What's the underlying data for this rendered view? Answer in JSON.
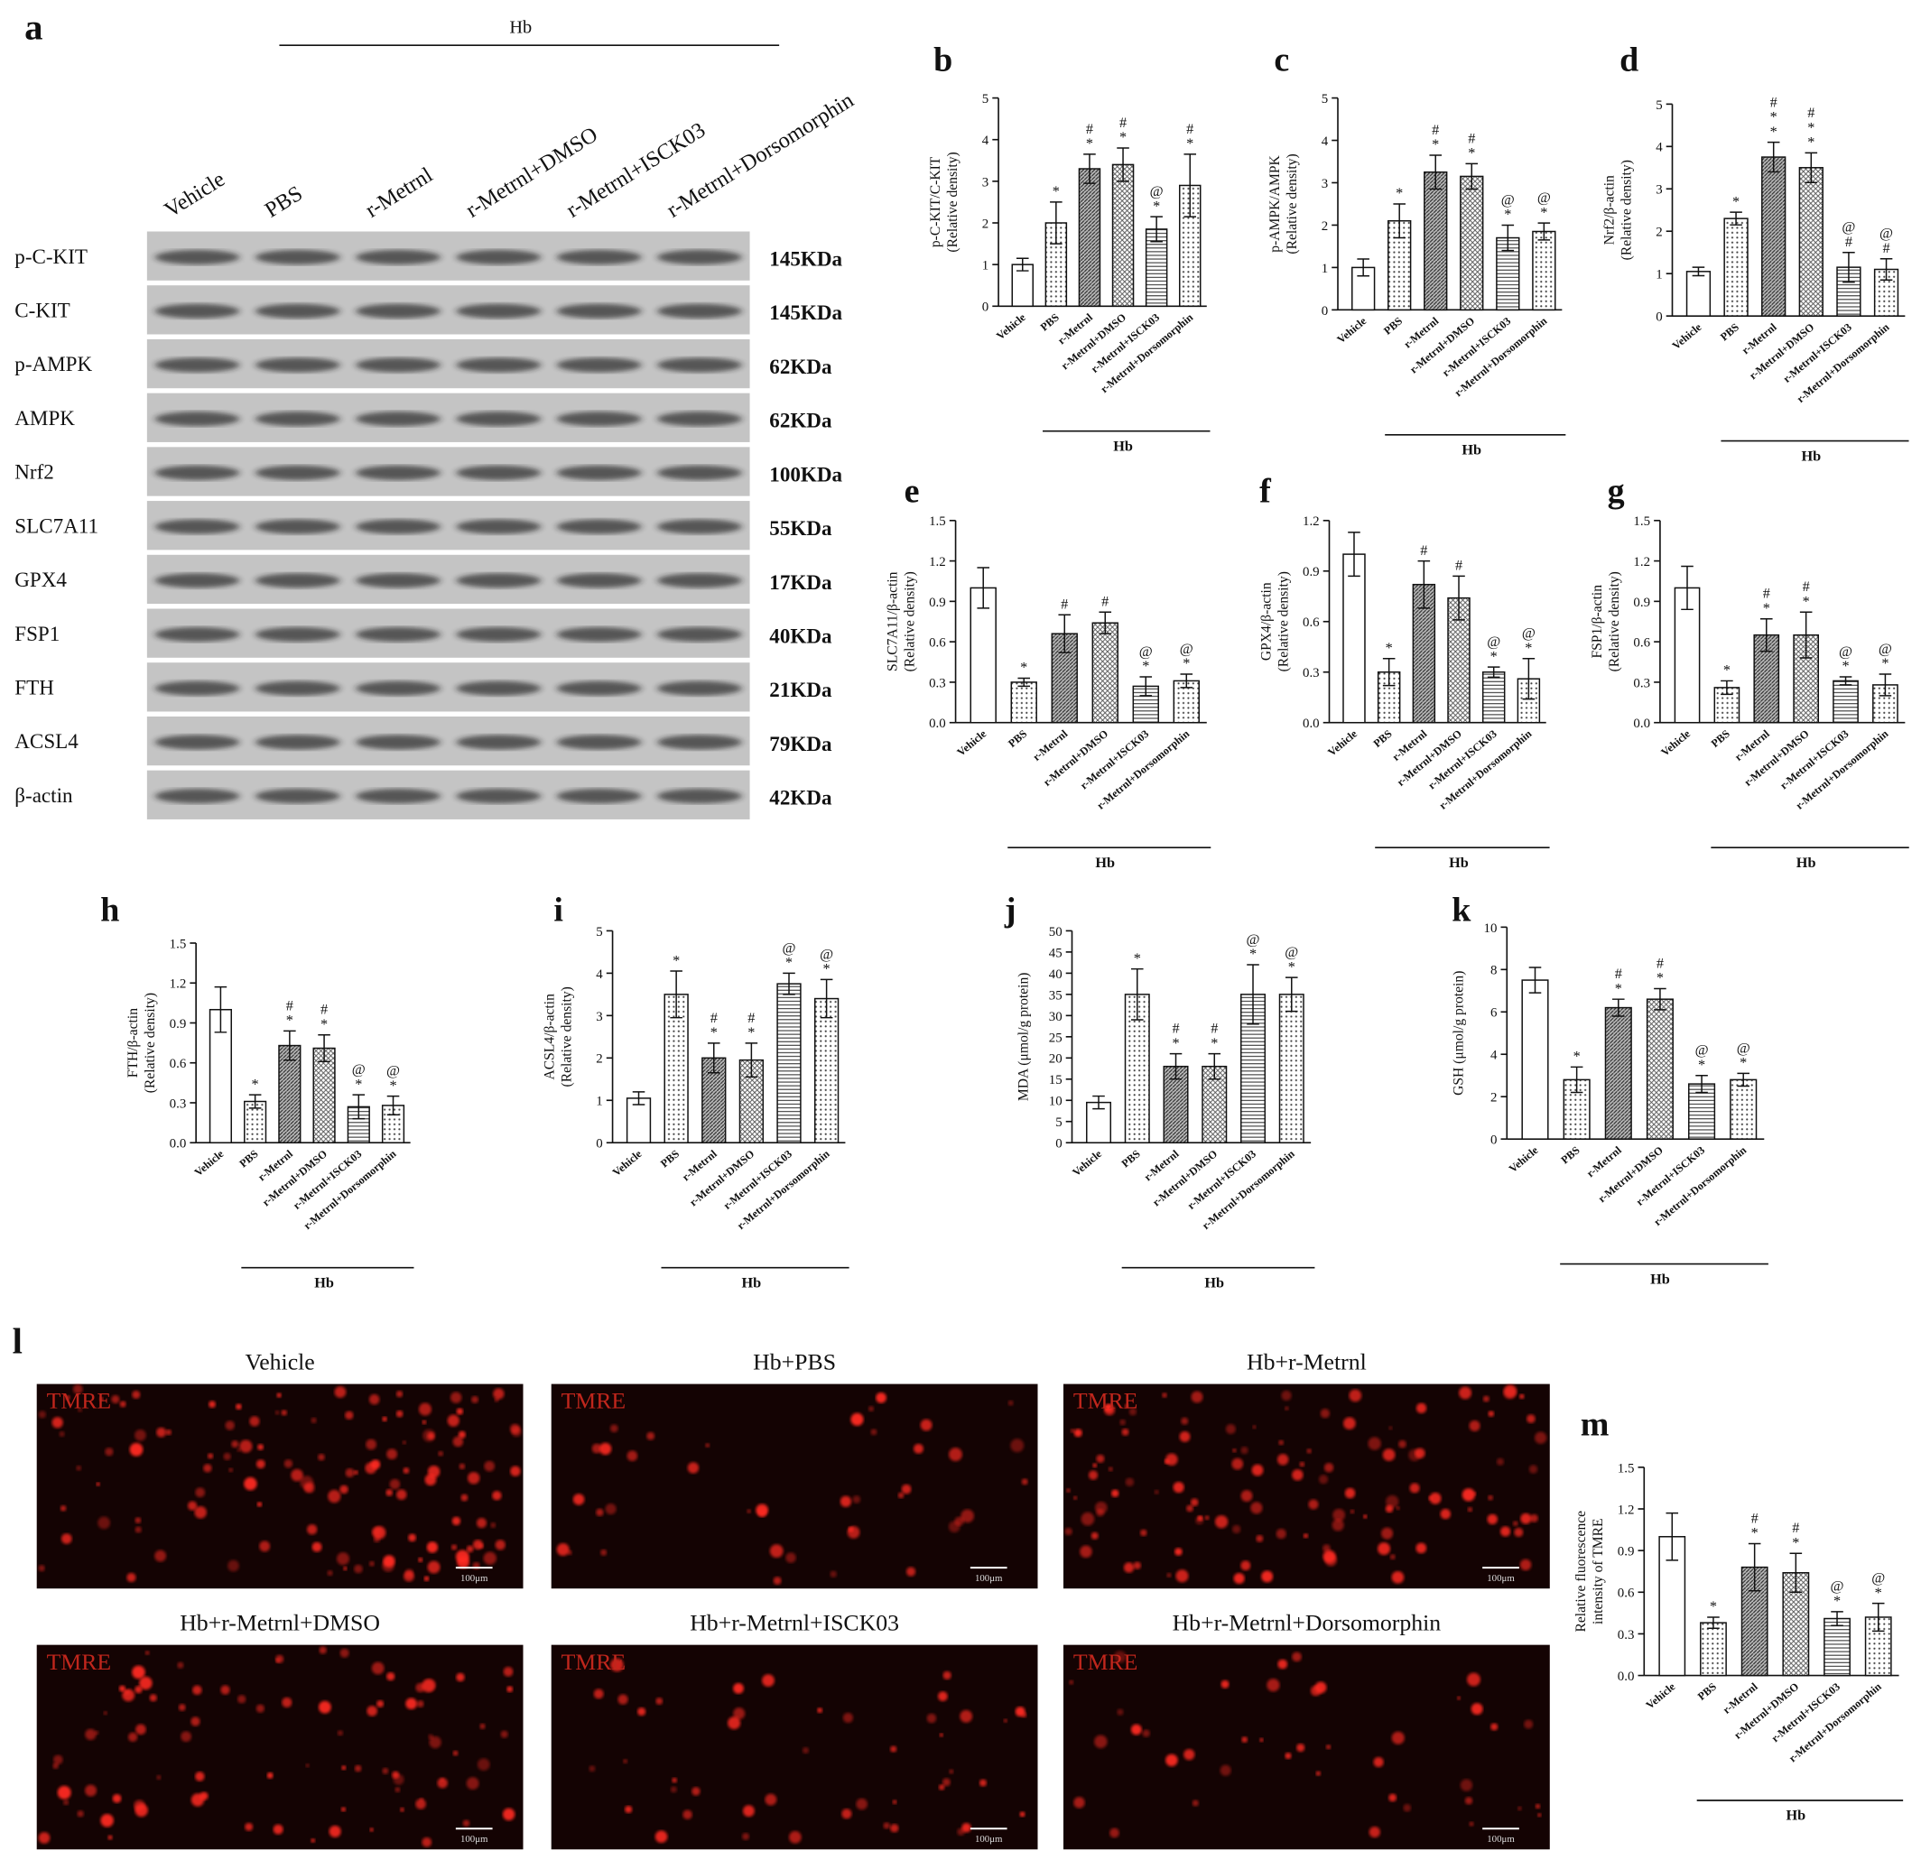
{
  "blot": {
    "panel": "a",
    "group_label": "Hb",
    "lanes": [
      "Vehicle",
      "PBS",
      "r-Metrnl",
      "r-Metrnl+DMSO",
      "r-Metrnl+ISCK03",
      "r-Metrnl+Dorsomorphin"
    ],
    "rows": [
      {
        "protein": "p-C-KIT",
        "size": "145KDa"
      },
      {
        "protein": "C-KIT",
        "size": "145KDa"
      },
      {
        "protein": "p-AMPK",
        "size": "62KDa"
      },
      {
        "protein": "AMPK",
        "size": "62KDa"
      },
      {
        "protein": "Nrf2",
        "size": "100KDa"
      },
      {
        "protein": "SLC7A11",
        "size": "55KDa"
      },
      {
        "protein": "GPX4",
        "size": "17KDa"
      },
      {
        "protein": "FSP1",
        "size": "40KDa"
      },
      {
        "protein": "FTH",
        "size": "21KDa"
      },
      {
        "protein": "ACSL4",
        "size": "79KDa"
      },
      {
        "protein": "β-actin",
        "size": "42KDa"
      }
    ]
  },
  "chart_data": [
    {
      "type": "bar",
      "panel": "b",
      "ylabel": [
        "p-C-KIT/C-KIT",
        "(Relative density)"
      ],
      "group_label": "Hb",
      "categories": [
        "Vehicle",
        "PBS",
        "r-Metrnl",
        "r-Metrnl+DMSO",
        "r-Metrnl+ISCK03",
        "r-Metrnl+Dorsomorphin"
      ],
      "values": [
        1.0,
        2.0,
        3.3,
        3.4,
        1.85,
        2.9
      ],
      "errors": [
        0.15,
        0.5,
        0.35,
        0.4,
        0.3,
        0.75
      ],
      "annotations": [
        [],
        [
          "*"
        ],
        [
          "#",
          "*"
        ],
        [
          "#",
          "*"
        ],
        [
          "@",
          "*"
        ],
        [
          "#",
          "*"
        ]
      ],
      "bar_patterns": [
        "none",
        "dots",
        "dark",
        "cross",
        "hlines",
        "dots"
      ],
      "ylim": [
        0,
        5
      ],
      "yticks": [
        0,
        1,
        2,
        3,
        4,
        5
      ]
    },
    {
      "type": "bar",
      "panel": "c",
      "ylabel": [
        "p-AMPK/AMPK",
        "(Relative density)"
      ],
      "group_label": "Hb",
      "categories": [
        "Vehicle",
        "PBS",
        "r-Metrnl",
        "r-Metrnl+DMSO",
        "r-Metrnl+ISCK03",
        "r-Metrnl+Dorsomorphin"
      ],
      "values": [
        1.0,
        2.1,
        3.25,
        3.15,
        1.7,
        1.85
      ],
      "errors": [
        0.2,
        0.4,
        0.4,
        0.3,
        0.3,
        0.2
      ],
      "annotations": [
        [],
        [
          "*"
        ],
        [
          "#",
          "*"
        ],
        [
          "#",
          "*"
        ],
        [
          "@",
          "*"
        ],
        [
          "@",
          "*"
        ]
      ],
      "bar_patterns": [
        "none",
        "dots",
        "dark",
        "cross",
        "hlines",
        "dots"
      ],
      "ylim": [
        0,
        5
      ],
      "yticks": [
        0,
        1,
        2,
        3,
        4,
        5
      ]
    },
    {
      "type": "bar",
      "panel": "d",
      "ylabel": [
        "Nrf2/β-actin",
        "(Relative density)"
      ],
      "group_label": "Hb",
      "categories": [
        "Vehicle",
        "PBS",
        "r-Metrnl",
        "r-Metrnl+DMSO",
        "r-Metrnl+ISCK03",
        "r-Metrnl+Dorsomorphin"
      ],
      "values": [
        1.05,
        2.3,
        3.75,
        3.5,
        1.15,
        1.1
      ],
      "errors": [
        0.1,
        0.15,
        0.35,
        0.35,
        0.35,
        0.25
      ],
      "annotations": [
        [],
        [
          "*"
        ],
        [
          "#",
          "*",
          "*"
        ],
        [
          "#",
          "*",
          "*"
        ],
        [
          "@",
          "#"
        ],
        [
          "@",
          "#"
        ]
      ],
      "bar_patterns": [
        "none",
        "dots",
        "dark",
        "cross",
        "hlines",
        "dots"
      ],
      "ylim": [
        0,
        5
      ],
      "yticks": [
        0,
        1,
        2,
        3,
        4,
        5
      ]
    },
    {
      "type": "bar",
      "panel": "e",
      "ylabel": [
        "SLC7A11/β-actin",
        "(Relative density)"
      ],
      "group_label": "Hb",
      "categories": [
        "Vehicle",
        "PBS",
        "r-Metrnl",
        "r-Metrnl+DMSO",
        "r-Metrnl+ISCK03",
        "r-Metrnl+Dorsomorphin"
      ],
      "values": [
        1.0,
        0.3,
        0.66,
        0.74,
        0.27,
        0.31
      ],
      "errors": [
        0.15,
        0.03,
        0.14,
        0.08,
        0.07,
        0.05
      ],
      "annotations": [
        [],
        [
          "*"
        ],
        [
          "#"
        ],
        [
          "#"
        ],
        [
          "@",
          "*"
        ],
        [
          "@",
          "*"
        ]
      ],
      "bar_patterns": [
        "none",
        "dots",
        "dark",
        "cross",
        "hlines",
        "dots"
      ],
      "ylim": [
        0,
        1.5
      ],
      "yticks": [
        {
          "value": 0,
          "label": "0.0"
        },
        0.3,
        0.6,
        0.9,
        1.2,
        1.5
      ]
    },
    {
      "type": "bar",
      "panel": "f",
      "ylabel": [
        "GPX4/β-actin",
        "(Relative density)"
      ],
      "group_label": "Hb",
      "categories": [
        "Vehicle",
        "PBS",
        "r-Metrnl",
        "r-Metrnl+DMSO",
        "r-Metrnl+ISCK03",
        "r-Metrnl+Dorsomorphin"
      ],
      "values": [
        1.0,
        0.3,
        0.82,
        0.74,
        0.3,
        0.26
      ],
      "errors": [
        0.13,
        0.08,
        0.14,
        0.13,
        0.03,
        0.12
      ],
      "annotations": [
        [],
        [
          "*"
        ],
        [
          "#"
        ],
        [
          "#"
        ],
        [
          "@",
          "*"
        ],
        [
          "@",
          "*"
        ]
      ],
      "bar_patterns": [
        "none",
        "dots",
        "dark",
        "cross",
        "hlines",
        "dots"
      ],
      "ylim": [
        0,
        1.2
      ],
      "yticks": [
        {
          "value": 0,
          "label": "0.0"
        },
        0.3,
        0.6,
        0.9,
        1.2
      ]
    },
    {
      "type": "bar",
      "panel": "g",
      "ylabel": [
        "FSP1/β-actin",
        "(Relative density)"
      ],
      "group_label": "Hb",
      "categories": [
        "Vehicle",
        "PBS",
        "r-Metrnl",
        "r-Metrnl+DMSO",
        "r-Metrnl+ISCK03",
        "r-Metrnl+Dorsomorphin"
      ],
      "values": [
        1.0,
        0.26,
        0.65,
        0.65,
        0.31,
        0.28
      ],
      "errors": [
        0.16,
        0.05,
        0.12,
        0.17,
        0.03,
        0.08
      ],
      "annotations": [
        [],
        [
          "*"
        ],
        [
          "#",
          "*"
        ],
        [
          "#",
          "*"
        ],
        [
          "@",
          "*"
        ],
        [
          "@",
          "*"
        ]
      ],
      "bar_patterns": [
        "none",
        "dots",
        "dark",
        "cross",
        "hlines",
        "dots"
      ],
      "ylim": [
        0,
        1.5
      ],
      "yticks": [
        {
          "value": 0,
          "label": "0.0"
        },
        0.3,
        0.6,
        0.9,
        1.2,
        1.5
      ]
    },
    {
      "type": "bar",
      "panel": "h",
      "ylabel": [
        "FTH/β-actin",
        "(Relative density)"
      ],
      "group_label": "Hb",
      "categories": [
        "Vehicle",
        "PBS",
        "r-Metrnl",
        "r-Metrnl+DMSO",
        "r-Metrnl+ISCK03",
        "r-Metrnl+Dorsomorphin"
      ],
      "values": [
        1.0,
        0.31,
        0.73,
        0.71,
        0.27,
        0.28
      ],
      "errors": [
        0.17,
        0.05,
        0.11,
        0.1,
        0.09,
        0.07
      ],
      "annotations": [
        [],
        [
          "*"
        ],
        [
          "#",
          "*"
        ],
        [
          "#",
          "*"
        ],
        [
          "@",
          "*"
        ],
        [
          "@",
          "*"
        ]
      ],
      "bar_patterns": [
        "none",
        "dots",
        "dark",
        "cross",
        "hlines",
        "dots"
      ],
      "ylim": [
        0,
        1.5
      ],
      "yticks": [
        {
          "value": 0,
          "label": "0.0"
        },
        0.3,
        0.6,
        0.9,
        1.2,
        1.5
      ]
    },
    {
      "type": "bar",
      "panel": "i",
      "ylabel": [
        "ACSL4/β-actin",
        "(Relative density)"
      ],
      "group_label": "Hb",
      "categories": [
        "Vehicle",
        "PBS",
        "r-Metrnl",
        "r-Metrnl+DMSO",
        "r-Metrnl+ISCK03",
        "r-Metrnl+Dorsomorphin"
      ],
      "values": [
        1.05,
        3.5,
        2.0,
        1.95,
        3.75,
        3.4
      ],
      "errors": [
        0.15,
        0.55,
        0.35,
        0.4,
        0.25,
        0.45
      ],
      "annotations": [
        [],
        [
          "*"
        ],
        [
          "#",
          "*"
        ],
        [
          "#",
          "*"
        ],
        [
          "@",
          "*"
        ],
        [
          "@",
          "*"
        ]
      ],
      "bar_patterns": [
        "none",
        "dots",
        "dark",
        "cross",
        "hlines",
        "dots"
      ],
      "ylim": [
        0,
        5
      ],
      "yticks": [
        0,
        1,
        2,
        3,
        4,
        5
      ]
    },
    {
      "type": "bar",
      "panel": "j",
      "ylabel": [
        "MDA (μmol/g protein)"
      ],
      "group_label": "Hb",
      "categories": [
        "Vehicle",
        "PBS",
        "r-Metrnl",
        "r-Metrnl+DMSO",
        "r-Metrnl+ISCK03",
        "r-Metrnl+Dorsomorphin"
      ],
      "values": [
        9.5,
        35,
        18,
        18,
        35,
        35
      ],
      "errors": [
        1.5,
        6,
        3,
        3,
        7,
        4
      ],
      "annotations": [
        [],
        [
          "*"
        ],
        [
          "#",
          "*"
        ],
        [
          "#",
          "*"
        ],
        [
          "@",
          "*"
        ],
        [
          "@",
          "*"
        ]
      ],
      "bar_patterns": [
        "none",
        "dots",
        "dark",
        "cross",
        "hlines",
        "dots"
      ],
      "ylim": [
        0,
        50
      ],
      "yticks": [
        0,
        5,
        10,
        15,
        20,
        25,
        30,
        35,
        40,
        45,
        50
      ]
    },
    {
      "type": "bar",
      "panel": "k",
      "ylabel": [
        "GSH (μmol/g protein)"
      ],
      "group_label": "Hb",
      "categories": [
        "Vehicle",
        "PBS",
        "r-Metrnl",
        "r-Metrnl+DMSO",
        "r-Metrnl+ISCK03",
        "r-Metrnl+Dorsomorphin"
      ],
      "values": [
        7.5,
        2.8,
        6.2,
        6.6,
        2.6,
        2.8
      ],
      "errors": [
        0.6,
        0.6,
        0.4,
        0.5,
        0.4,
        0.3
      ],
      "annotations": [
        [],
        [
          "*"
        ],
        [
          "#",
          "*"
        ],
        [
          "#",
          "*"
        ],
        [
          "@",
          "*"
        ],
        [
          "@",
          "*"
        ]
      ],
      "bar_patterns": [
        "none",
        "dots",
        "dark",
        "cross",
        "hlines",
        "dots"
      ],
      "ylim": [
        0,
        10
      ],
      "yticks": [
        0,
        2,
        4,
        6,
        8,
        10
      ]
    },
    {
      "type": "bar",
      "panel": "m",
      "ylabel": [
        "Relative fluorescence",
        "intensity of TMRE"
      ],
      "group_label": "Hb",
      "categories": [
        "Vehicle",
        "PBS",
        "r-Metrnl",
        "r-Metrnl+DMSO",
        "r-Metrnl+ISCK03",
        "r-Metrnl+Dorsomorphin"
      ],
      "values": [
        1.0,
        0.38,
        0.78,
        0.74,
        0.41,
        0.42
      ],
      "errors": [
        0.17,
        0.04,
        0.17,
        0.14,
        0.05,
        0.1
      ],
      "annotations": [
        [],
        [
          "*"
        ],
        [
          "#",
          "*"
        ],
        [
          "#",
          "*"
        ],
        [
          "@",
          "*"
        ],
        [
          "@",
          "*"
        ]
      ],
      "bar_patterns": [
        "none",
        "dots",
        "dark",
        "cross",
        "hlines",
        "dots"
      ],
      "ylim": [
        0,
        1.5
      ],
      "yticks": [
        {
          "value": 0,
          "label": "0.0"
        },
        0.3,
        0.6,
        0.9,
        1.2,
        1.5
      ]
    }
  ],
  "micrographs": {
    "panel": "l",
    "stain": "TMRE",
    "scale_bar": "100μm",
    "images": [
      {
        "title": "Vehicle"
      },
      {
        "title": "Hb+PBS"
      },
      {
        "title": "Hb+r-Metrnl"
      },
      {
        "title": "Hb+r-Metrnl+DMSO"
      },
      {
        "title": "Hb+r-Metrnl+ISCK03"
      },
      {
        "title": "Hb+r-Metrnl+Dorsomorphin"
      }
    ]
  }
}
